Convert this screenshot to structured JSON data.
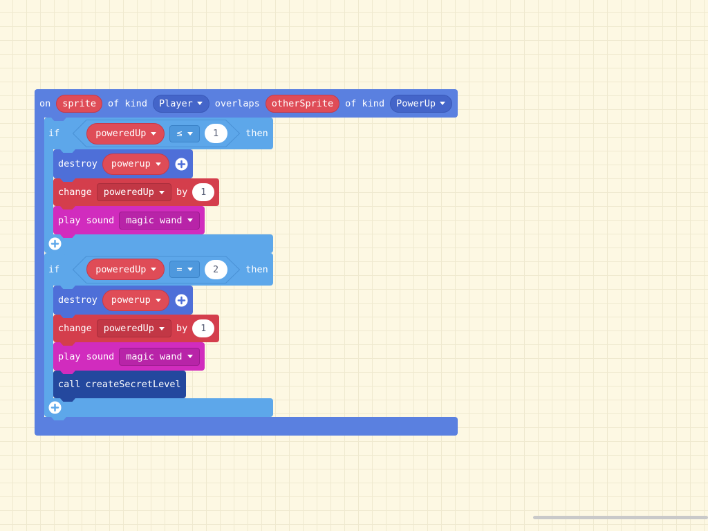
{
  "colors": {
    "workspace_bg": "#fdf8e3",
    "grid_line": "#efe9cf",
    "event_block": "#5a80e0",
    "logic_block": "#5da7ea",
    "sprite_block": "#4e6fd8",
    "variable_block": "#d43e4c",
    "variable_reporter": "#df4c57",
    "music_block": "#d12cbe",
    "function_block": "#24489e",
    "number_text": "#575e75"
  },
  "icons": {
    "dropdown": "dropdown-arrow-icon",
    "add": "add-circle-icon"
  },
  "event_block": {
    "on_label": "on",
    "sprite_param": "sprite",
    "of_kind_label_1": "of kind",
    "kind_1": "Player",
    "overlaps_label": "overlaps",
    "other_param": "otherSprite",
    "of_kind_label_2": "of kind",
    "kind_2": "PowerUp"
  },
  "if_blocks": [
    {
      "if_label": "if",
      "condition": {
        "variable": "poweredUp",
        "operator": "≤",
        "value": 1
      },
      "then_label": "then",
      "destroy": {
        "label": "destroy",
        "target": "powerup"
      },
      "change": {
        "label": "change",
        "variable": "poweredUp",
        "by_label": "by",
        "amount": 1
      },
      "play_sound": {
        "label": "play sound",
        "sound": "magic wand"
      }
    },
    {
      "if_label": "if",
      "condition": {
        "variable": "poweredUp",
        "operator": "=",
        "value": 2
      },
      "then_label": "then",
      "destroy": {
        "label": "destroy",
        "target": "powerup"
      },
      "change": {
        "label": "change",
        "variable": "poweredUp",
        "by_label": "by",
        "amount": 1
      },
      "play_sound": {
        "label": "play sound",
        "sound": "magic wand"
      },
      "call": {
        "label": "call",
        "function": "createSecretLevel"
      }
    }
  ]
}
